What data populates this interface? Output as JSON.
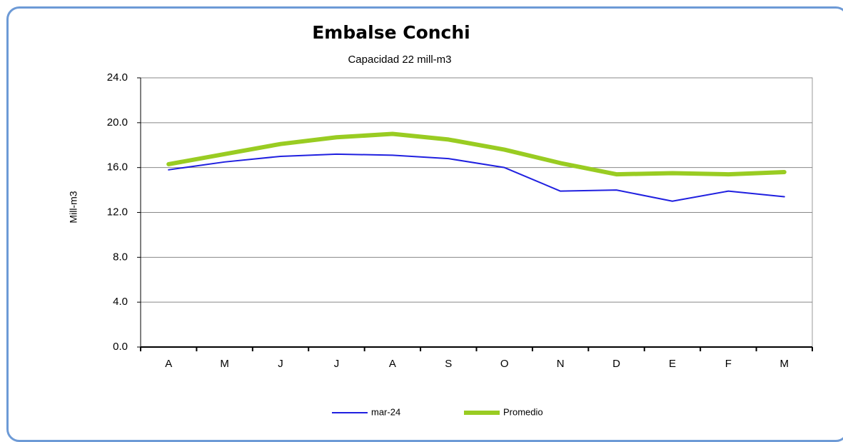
{
  "chart_data": {
    "type": "line",
    "title": "Embalse Conchi",
    "subtitle": "Capacidad 22 mill-m3",
    "y_label": "Mill-m3",
    "categories": [
      "A",
      "M",
      "J",
      "J",
      "A",
      "S",
      "O",
      "N",
      "D",
      "E",
      "F",
      "M"
    ],
    "series": [
      {
        "name": "mar-24",
        "color": "#2020e0",
        "width": 2,
        "values": [
          15.8,
          16.5,
          17.0,
          17.2,
          17.1,
          16.8,
          16.0,
          13.9,
          14.0,
          13.0,
          13.9,
          13.4
        ]
      },
      {
        "name": "Promedio",
        "color": "#99cc22",
        "width": 6,
        "values": [
          16.3,
          17.2,
          18.1,
          18.7,
          19.0,
          18.5,
          17.6,
          16.4,
          15.4,
          15.5,
          15.4,
          15.6
        ]
      }
    ],
    "ylim": [
      0,
      24
    ],
    "yticks": [
      {
        "value": 0,
        "label": "0.0"
      },
      {
        "value": 4,
        "label": "4.0"
      },
      {
        "value": 8,
        "label": "8.0"
      },
      {
        "value": 12,
        "label": "12.0"
      },
      {
        "value": 16,
        "label": "16.0"
      },
      {
        "value": 20,
        "label": "20.0"
      },
      {
        "value": 24,
        "label": "24.0"
      }
    ],
    "grid": true,
    "legend": "bottom"
  }
}
